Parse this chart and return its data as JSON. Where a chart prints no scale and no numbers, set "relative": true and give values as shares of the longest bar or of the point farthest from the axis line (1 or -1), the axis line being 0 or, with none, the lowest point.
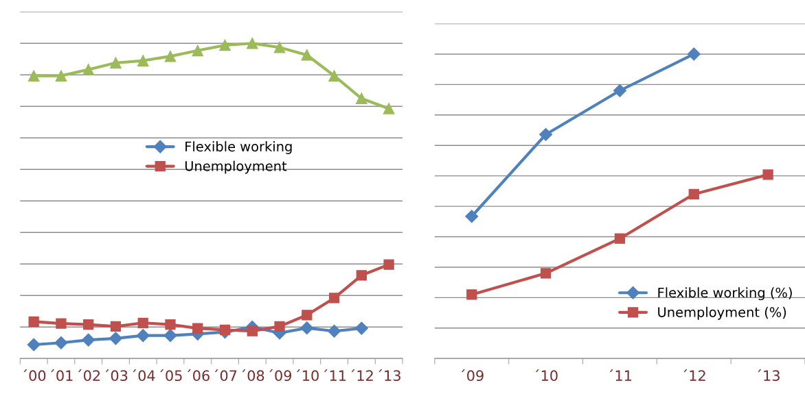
{
  "chart_data": [
    {
      "type": "line",
      "relative": true,
      "grid": "y",
      "legend": "center",
      "line_style": "solid",
      "categories": [
        "´00",
        "´01",
        "´02",
        "´03",
        "´04",
        "´05",
        "´06",
        "´07",
        "´08",
        "´09",
        "´10",
        "´11",
        "´12",
        "´13"
      ],
      "series": [
        {
          "color": "#9bbb59",
          "marker": "triangle",
          "values": [
            0.897,
            0.897,
            0.917,
            0.938,
            0.945,
            0.959,
            0.977,
            0.994,
            1,
            0.987,
            0.963,
            0.897,
            0.825,
            0.793
          ]
        },
        {
          "name": "Flexible working",
          "color": "#4f81bd",
          "marker": "diamond",
          "values": [
            0.044,
            0.05,
            0.059,
            0.064,
            0.073,
            0.073,
            0.078,
            0.084,
            0.1,
            0.081,
            0.097,
            0.087,
            0.096,
            null
          ]
        },
        {
          "name": "Unemployment",
          "color": "#c0504d",
          "marker": "square",
          "values": [
            0.117,
            0.111,
            0.108,
            0.102,
            0.113,
            0.108,
            0.096,
            0.091,
            0.087,
            0.102,
            0.138,
            0.192,
            0.264,
            0.298
          ]
        }
      ]
    },
    {
      "type": "line",
      "relative": true,
      "grid": "y",
      "legend": "bottom right",
      "line_style": "solid",
      "categories": [
        "´09",
        "´10",
        "´11",
        "´12",
        "´13"
      ],
      "series": [
        {
          "name": "Flexible working (%)",
          "color": "#4f81bd",
          "marker": "diamond",
          "values": [
            0.467,
            0.736,
            0.88,
            1,
            null
          ]
        },
        {
          "name": "Unemployment (%)",
          "color": "#c0504d",
          "marker": "square",
          "values": [
            0.21,
            0.28,
            0.394,
            0.54,
            0.604
          ]
        }
      ]
    }
  ]
}
